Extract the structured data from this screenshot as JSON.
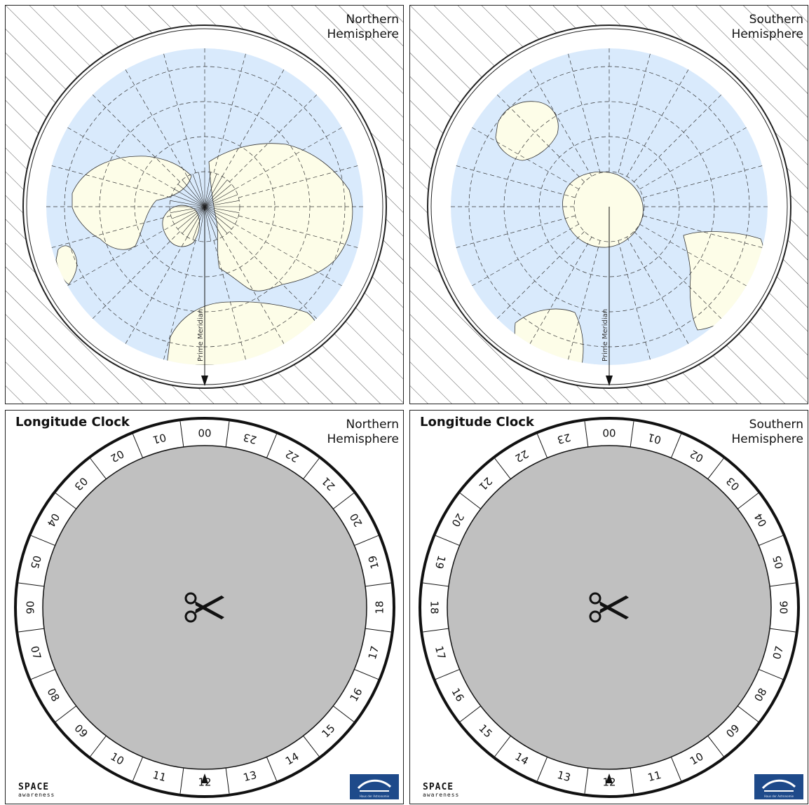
{
  "panels": {
    "north_map": {
      "label_line1": "Northern",
      "label_line2": "Hemisphere",
      "meridian_label": "Prime Meridian"
    },
    "south_map": {
      "label_line1": "Southern",
      "label_line2": "Hemisphere",
      "meridian_label": "Prime Meridian"
    },
    "north_clock": {
      "title": "Longitude Clock",
      "label_line1": "Northern",
      "label_line2": "Hemisphere",
      "hours_direction": "counterclockwise"
    },
    "south_clock": {
      "title": "Longitude Clock",
      "label_line1": "Southern",
      "label_line2": "Hemisphere",
      "hours_direction": "clockwise"
    }
  },
  "clock_hours": [
    "00",
    "01",
    "02",
    "03",
    "04",
    "05",
    "06",
    "07",
    "08",
    "09",
    "10",
    "11",
    "12",
    "13",
    "14",
    "15",
    "16",
    "17",
    "18",
    "19",
    "20",
    "21",
    "22",
    "23"
  ],
  "logos": {
    "space_awareness_line1": "SPACE",
    "space_awareness_line2": "awareness",
    "hda_caption": "Haus der Astronomie"
  },
  "colors": {
    "ocean": "#d9eafc",
    "land": "#fdfde8",
    "dial": "#c0c0c0",
    "ink": "#111111"
  },
  "icons": {
    "clock_center": "scissors-icon",
    "pointer": "arrow-up-icon"
  }
}
